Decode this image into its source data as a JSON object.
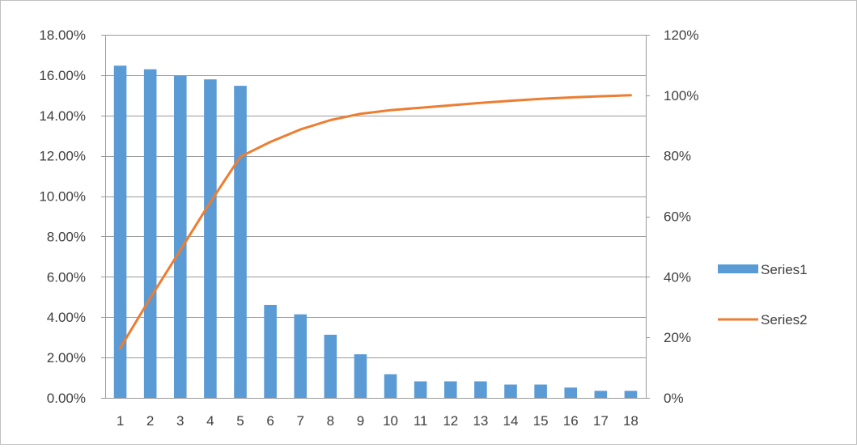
{
  "chart_data": {
    "type": "bar",
    "categories": [
      "1",
      "2",
      "3",
      "4",
      "5",
      "6",
      "7",
      "8",
      "9",
      "10",
      "11",
      "12",
      "13",
      "14",
      "15",
      "16",
      "17",
      "18"
    ],
    "series": [
      {
        "name": "Series1",
        "type": "bar",
        "axis": "left",
        "color": "#5b9bd5",
        "values": [
          16.47,
          16.29,
          15.98,
          15.79,
          15.47,
          4.61,
          4.14,
          3.13,
          2.16,
          1.17,
          0.82,
          0.82,
          0.82,
          0.66,
          0.66,
          0.51,
          0.35,
          0.35
        ]
      },
      {
        "name": "Series2",
        "type": "line",
        "axis": "right",
        "color": "#ed7d31",
        "values": [
          16.5,
          33.0,
          48.8,
          64.7,
          79.7,
          84.6,
          88.7,
          91.8,
          93.9,
          95.1,
          95.9,
          96.7,
          97.5,
          98.2,
          98.8,
          99.3,
          99.7,
          100.0
        ]
      }
    ],
    "y_left": {
      "ylim": [
        0,
        18
      ],
      "ticks": [
        0,
        2,
        4,
        6,
        8,
        10,
        12,
        14,
        16,
        18
      ],
      "tick_labels": [
        "0.00%",
        "2.00%",
        "4.00%",
        "6.00%",
        "8.00%",
        "10.00%",
        "12.00%",
        "14.00%",
        "16.00%",
        "18.00%"
      ]
    },
    "y_right": {
      "ylim": [
        0,
        120
      ],
      "ticks": [
        0,
        20,
        40,
        60,
        80,
        100,
        120
      ],
      "tick_labels": [
        "0%",
        "20%",
        "40%",
        "60%",
        "80%",
        "100%",
        "120%"
      ]
    },
    "grid": true,
    "legend": "right",
    "title": "",
    "xlabel": "",
    "ylabel": ""
  }
}
